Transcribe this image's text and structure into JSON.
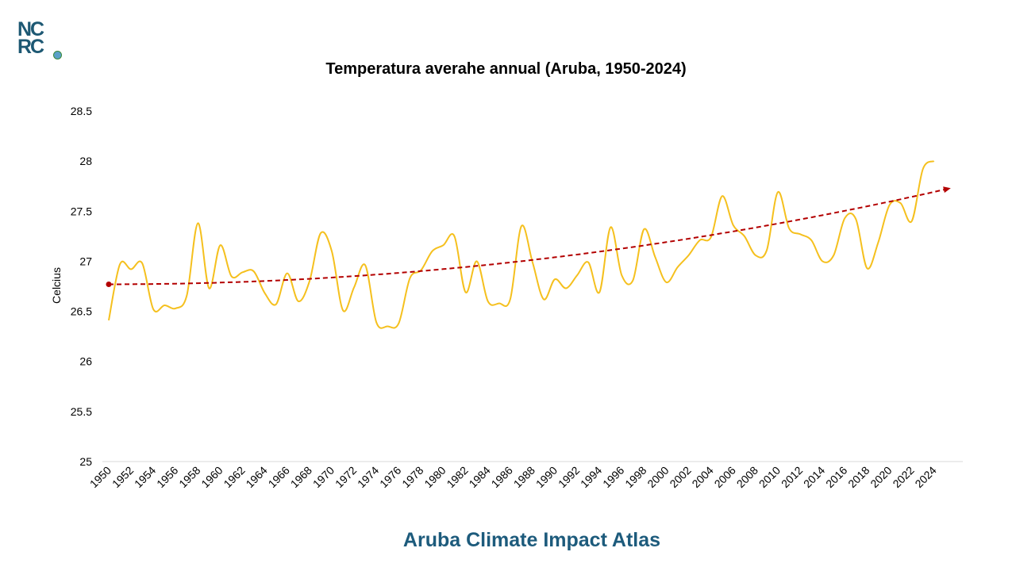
{
  "logo": {
    "line1": "NC",
    "line2": "RC",
    "globe_icon": "globe-icon"
  },
  "footer": {
    "text": "Aruba Climate Impact Atlas"
  },
  "colors": {
    "series": "#f5c01e",
    "trend": "#b30000",
    "footer": "#1d5b7c",
    "logo": "#1d5873"
  },
  "chart_data": {
    "type": "line",
    "title": "Temperatura averahe annual (Aruba, 1950-2024)",
    "xlabel": "",
    "ylabel": "Celcius",
    "ylim": [
      25,
      28.5
    ],
    "yticks": [
      "25",
      "25.5",
      "26",
      "26.5",
      "27",
      "27.5",
      "28",
      "28.5"
    ],
    "xticks": [
      "1950",
      "1952",
      "1954",
      "1956",
      "1958",
      "1960",
      "1962",
      "1964",
      "1966",
      "1968",
      "1970",
      "1972",
      "1974",
      "1976",
      "1978",
      "1980",
      "1982",
      "1984",
      "1986",
      "1988",
      "1990",
      "1992",
      "1994",
      "1996",
      "1998",
      "2000",
      "2002",
      "2004",
      "2006",
      "2008",
      "2010",
      "2012",
      "2014",
      "2016",
      "2018",
      "2020",
      "2022",
      "2024"
    ],
    "grid": "none",
    "legend": "none",
    "x": [
      1950,
      1951,
      1952,
      1953,
      1954,
      1955,
      1956,
      1957,
      1958,
      1959,
      1960,
      1961,
      1962,
      1963,
      1964,
      1965,
      1966,
      1967,
      1968,
      1969,
      1970,
      1971,
      1972,
      1973,
      1974,
      1975,
      1976,
      1977,
      1978,
      1979,
      1980,
      1981,
      1982,
      1983,
      1984,
      1985,
      1986,
      1987,
      1988,
      1989,
      1990,
      1991,
      1992,
      1993,
      1994,
      1995,
      1996,
      1997,
      1998,
      1999,
      2000,
      2001,
      2002,
      2003,
      2004,
      2005,
      2006,
      2007,
      2008,
      2009,
      2010,
      2011,
      2012,
      2013,
      2014,
      2015,
      2016,
      2017,
      2018,
      2019,
      2020,
      2021,
      2022,
      2023,
      2024
    ],
    "series": [
      {
        "values": [
          26.41,
          26.97,
          26.92,
          26.98,
          26.52,
          26.56,
          26.53,
          26.66,
          27.38,
          26.73,
          27.16,
          26.85,
          26.89,
          26.9,
          26.68,
          26.57,
          26.88,
          26.6,
          26.8,
          27.28,
          27.1,
          26.51,
          26.74,
          26.96,
          26.39,
          26.35,
          26.38,
          26.83,
          26.91,
          27.1,
          27.16,
          27.25,
          26.69,
          27.0,
          26.6,
          26.58,
          26.62,
          27.35,
          26.99,
          26.62,
          26.82,
          26.73,
          26.86,
          26.99,
          26.69,
          27.34,
          26.86,
          26.81,
          27.32,
          27.04,
          26.79,
          26.94,
          27.06,
          27.21,
          27.24,
          27.65,
          27.36,
          27.25,
          27.06,
          27.11,
          27.69,
          27.33,
          27.27,
          27.21,
          27.0,
          27.06,
          27.43,
          27.42,
          26.93,
          27.19,
          27.56,
          27.58,
          27.4,
          27.92,
          28.0
        ]
      }
    ],
    "trendline": {
      "type": "polynomial",
      "start": 26.77,
      "end": 27.73
    }
  }
}
